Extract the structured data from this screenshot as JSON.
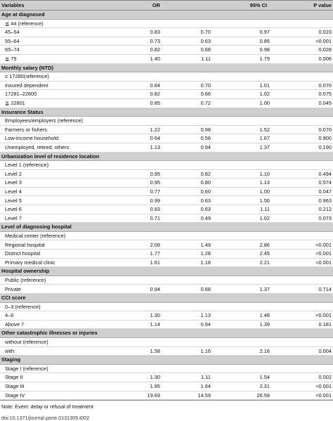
{
  "header": {
    "variables": "Variables",
    "or": "OR",
    "ci": "95% CI",
    "p": "P value"
  },
  "sections": [
    {
      "title": "Age at diagnosed",
      "rows": [
        {
          "name": "≦ 44 (reference)",
          "or": "",
          "lo": "",
          "hi": "",
          "p": ""
        },
        {
          "name": "45–54",
          "or": "0.83",
          "lo": "0.70",
          "hi": "0.97",
          "p": "0.023"
        },
        {
          "name": "55–64",
          "or": "0.73",
          "lo": "0.63",
          "hi": "0.85",
          "p": "<0.001"
        },
        {
          "name": "65–74",
          "or": "0.82",
          "lo": "0.68",
          "hi": "0.98",
          "p": "0.028"
        },
        {
          "name": "≧ 75",
          "or": "1.40",
          "lo": "1.11",
          "hi": "1.79",
          "p": "0.006"
        }
      ]
    },
    {
      "title": "Monthly salary (NTD)",
      "rows": [
        {
          "name": "≤ 17280(reference)",
          "or": "",
          "lo": "",
          "hi": "",
          "p": ""
        },
        {
          "name": "Insured dependent",
          "or": "0.84",
          "lo": "0.70",
          "hi": "1.01",
          "p": "0.070"
        },
        {
          "name": "17281–22800",
          "or": "0.82",
          "lo": "0.66",
          "hi": "1.02",
          "p": "0.075"
        },
        {
          "name": "≧ 22801",
          "or": "0.85",
          "lo": "0.72",
          "hi": "1.00",
          "p": "0.045"
        }
      ]
    },
    {
      "title": "Insurance Status",
      "rows": [
        {
          "name": "Employees/employers (reference)",
          "or": "",
          "lo": "",
          "hi": "",
          "p": ""
        },
        {
          "name": "Farmers or fishers",
          "or": "1.22",
          "lo": "0.98",
          "hi": "1.52",
          "p": "0.070"
        },
        {
          "name": "Low-income household",
          "or": "0.64",
          "lo": "0.56",
          "hi": "1.67",
          "p": "0.900"
        },
        {
          "name": "Unemployed, retired, others",
          "or": "1.13",
          "lo": "0.94",
          "hi": "1.37",
          "p": "0.190"
        }
      ]
    },
    {
      "title": "Urbanization level of residence location",
      "rows": [
        {
          "name": "Level 1 (reference)",
          "or": "",
          "lo": "",
          "hi": "",
          "p": ""
        },
        {
          "name": "Level 2",
          "or": "0.95",
          "lo": "0.82",
          "hi": "1.10",
          "p": "0.494"
        },
        {
          "name": "Level 3",
          "or": "0.95",
          "lo": "0.80",
          "hi": "1.13",
          "p": "0.574"
        },
        {
          "name": "Level 4",
          "or": "0.77",
          "lo": "0.60",
          "hi": "1.00",
          "p": "0.047"
        },
        {
          "name": "Level 5",
          "or": "0.99",
          "lo": "0.63",
          "hi": "1.56",
          "p": "0.963"
        },
        {
          "name": "Level 6",
          "or": "0.83",
          "lo": "0.63",
          "hi": "1.11",
          "p": "0.212"
        },
        {
          "name": "Level 7",
          "or": "0.71",
          "lo": "0.49",
          "hi": "1.02",
          "p": "0.073"
        }
      ]
    },
    {
      "title": "Level of diagnosing hospital",
      "rows": [
        {
          "name": "Medical center (reference)",
          "or": "",
          "lo": "",
          "hi": "",
          "p": ""
        },
        {
          "name": "Regional hospital",
          "or": "2.08",
          "lo": "1.49",
          "hi": "2.86",
          "p": "<0.001"
        },
        {
          "name": "District hospital",
          "or": "1.77",
          "lo": "1.28",
          "hi": "2.45",
          "p": "<0.001"
        },
        {
          "name": "Primary medical clinic",
          "or": "1.61",
          "lo": "1.18",
          "hi": "2.21",
          "p": "<0.001"
        }
      ]
    },
    {
      "title": "Hospital ownership",
      "rows": [
        {
          "name": "Public (reference)",
          "or": "",
          "lo": "",
          "hi": "",
          "p": ""
        },
        {
          "name": "Private",
          "or": "0.94",
          "lo": "0.68",
          "hi": "1.37",
          "p": "0.714"
        }
      ]
    },
    {
      "title": "CCI score",
      "rows": [
        {
          "name": "0–3 (reference)",
          "or": "",
          "lo": "",
          "hi": "",
          "p": ""
        },
        {
          "name": "4–6",
          "or": "1.30",
          "lo": "1.13",
          "hi": "1.48",
          "p": "<0.001"
        },
        {
          "name": "Above 7",
          "or": "1.14",
          "lo": "0.94",
          "hi": "1.39",
          "p": "0.181"
        }
      ]
    },
    {
      "title": "Other catastrophic illnesses or injuries",
      "rows": [
        {
          "name": "without (reference)",
          "or": "",
          "lo": "",
          "hi": "",
          "p": ""
        },
        {
          "name": "with",
          "or": "1.58",
          "lo": "1.16",
          "hi": "2.16",
          "p": "0.004"
        }
      ]
    },
    {
      "title": "Staging",
      "rows": [
        {
          "name": "Stage I (reference)",
          "or": "",
          "lo": "",
          "hi": "",
          "p": ""
        },
        {
          "name": "Stage II",
          "or": "1.30",
          "lo": "1.11",
          "hi": "1.54",
          "p": "0.002"
        },
        {
          "name": "Stage III",
          "or": "1.95",
          "lo": "1.64",
          "hi": "2.31",
          "p": "<0.001"
        },
        {
          "name": "Stage IV",
          "or": "19.69",
          "lo": "14.59",
          "hi": "26.58",
          "p": "<0.001"
        }
      ]
    }
  ],
  "footnote": "Note: Event: delay or refusal of treatment",
  "doi": "doi:10.1371/journal.pone.0131305.t002"
}
